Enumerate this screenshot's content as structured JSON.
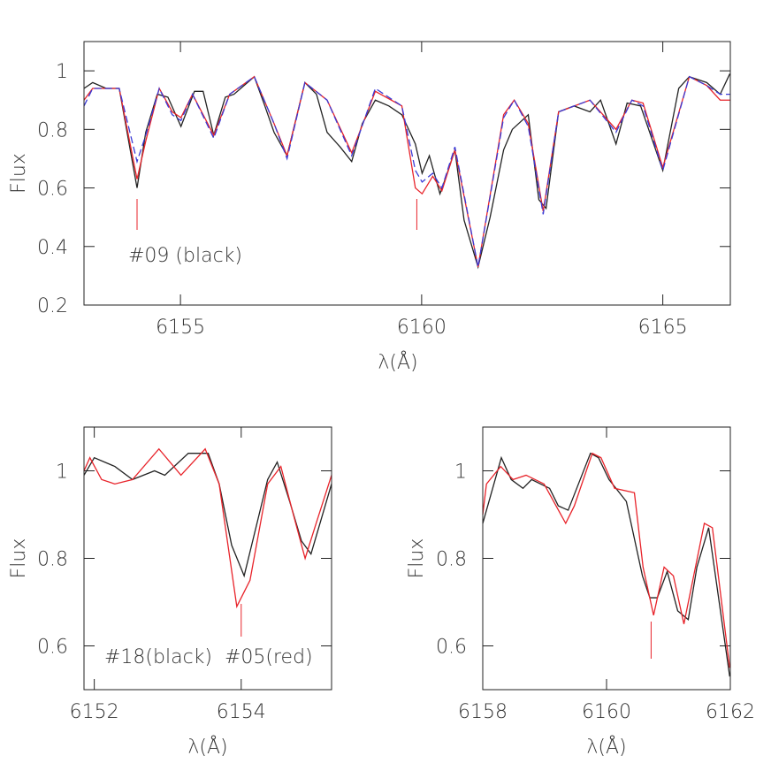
{
  "chart_data": [
    {
      "type": "line",
      "x_label": "λ(Å)",
      "y_label": "Flux",
      "annotation": "#09 (black)",
      "xlim": [
        6153.0,
        6166.4
      ],
      "ylim": [
        0.2,
        1.1
      ],
      "xticks": [
        6155,
        6160,
        6165
      ],
      "yticks": [
        0.2,
        0.4,
        0.6,
        0.8,
        1
      ],
      "marker_x": [
        6154.1,
        6159.9
      ],
      "marker_color": "#e8232a",
      "series": [
        {
          "color": "#222222",
          "dash": false,
          "x": [
            6153.0,
            6153.18,
            6153.46,
            6153.73,
            6154.1,
            6154.28,
            6154.52,
            6154.74,
            6155.01,
            6155.29,
            6155.47,
            6155.69,
            6155.93,
            6156.11,
            6156.53,
            6156.75,
            6156.94,
            6157.21,
            6157.58,
            6157.82,
            6158.04,
            6158.31,
            6158.55,
            6158.77,
            6159.04,
            6159.32,
            6159.59,
            6159.87,
            6160.01,
            6160.16,
            6160.38,
            6160.51,
            6160.69,
            6160.88,
            6161.17,
            6161.42,
            6161.7,
            6161.88,
            6162.21,
            6162.43,
            6162.58,
            6162.84,
            6163.16,
            6163.49,
            6163.71,
            6164.03,
            6164.26,
            6164.54,
            6165.0,
            6165.33,
            6165.55,
            6165.91,
            6166.19,
            6166.39
          ],
          "values": [
            0.94,
            0.96,
            0.94,
            0.94,
            0.6,
            0.79,
            0.92,
            0.91,
            0.81,
            0.93,
            0.93,
            0.78,
            0.91,
            0.92,
            0.98,
            0.88,
            0.79,
            0.71,
            0.96,
            0.92,
            0.79,
            0.74,
            0.69,
            0.82,
            0.9,
            0.88,
            0.85,
            0.75,
            0.65,
            0.71,
            0.58,
            0.64,
            0.73,
            0.49,
            0.33,
            0.5,
            0.73,
            0.8,
            0.85,
            0.56,
            0.53,
            0.86,
            0.88,
            0.86,
            0.9,
            0.75,
            0.89,
            0.88,
            0.66,
            0.94,
            0.98,
            0.96,
            0.92,
            0.99
          ]
        },
        {
          "color": "#e8232a",
          "dash": false,
          "x": [
            6153.0,
            6153.18,
            6153.73,
            6154.1,
            6154.28,
            6154.56,
            6154.83,
            6155.01,
            6155.25,
            6155.69,
            6156.02,
            6156.53,
            6156.94,
            6157.21,
            6157.58,
            6158.04,
            6158.55,
            6159.04,
            6159.59,
            6159.87,
            6160.01,
            6160.23,
            6160.42,
            6160.69,
            6161.17,
            6161.7,
            6161.92,
            6162.21,
            6162.52,
            6162.84,
            6163.49,
            6164.03,
            6164.36,
            6164.59,
            6165.0,
            6165.55,
            6165.91,
            6166.19,
            6166.39
          ],
          "values": [
            0.9,
            0.94,
            0.94,
            0.63,
            0.76,
            0.94,
            0.86,
            0.84,
            0.92,
            0.78,
            0.92,
            0.98,
            0.82,
            0.71,
            0.96,
            0.9,
            0.72,
            0.93,
            0.88,
            0.6,
            0.58,
            0.64,
            0.59,
            0.73,
            0.33,
            0.85,
            0.9,
            0.82,
            0.52,
            0.86,
            0.9,
            0.8,
            0.9,
            0.89,
            0.67,
            0.98,
            0.95,
            0.9,
            0.9
          ]
        },
        {
          "color": "#3b3bd6",
          "dash": true,
          "x": [
            6153.0,
            6153.18,
            6153.73,
            6154.1,
            6154.28,
            6154.56,
            6154.83,
            6155.01,
            6155.25,
            6155.69,
            6156.02,
            6156.53,
            6156.94,
            6157.21,
            6157.58,
            6158.04,
            6158.55,
            6159.04,
            6159.59,
            6159.87,
            6160.01,
            6160.23,
            6160.42,
            6160.69,
            6161.17,
            6161.7,
            6161.92,
            6162.21,
            6162.52,
            6162.84,
            6163.49,
            6164.03,
            6164.36,
            6164.59,
            6165.0,
            6165.55,
            6165.91,
            6166.19,
            6166.39
          ],
          "values": [
            0.88,
            0.94,
            0.94,
            0.69,
            0.78,
            0.94,
            0.85,
            0.83,
            0.92,
            0.77,
            0.92,
            0.98,
            0.82,
            0.7,
            0.96,
            0.9,
            0.71,
            0.94,
            0.88,
            0.66,
            0.62,
            0.65,
            0.6,
            0.74,
            0.33,
            0.84,
            0.9,
            0.81,
            0.51,
            0.86,
            0.9,
            0.79,
            0.9,
            0.88,
            0.66,
            0.98,
            0.95,
            0.92,
            0.92
          ]
        }
      ]
    },
    {
      "type": "line",
      "x_label": "λ(Å)",
      "y_label": "Flux",
      "annotation": "#18(black)  #05(red)",
      "xlim": [
        6151.86,
        6155.23
      ],
      "ylim": [
        0.5,
        1.1
      ],
      "xticks": [
        6152,
        6154
      ],
      "yticks": [
        0.6,
        0.8,
        1
      ],
      "marker_x": [
        6154.0
      ],
      "marker_color": "#e8232a",
      "series": [
        {
          "color": "#222222",
          "dash": false,
          "x": [
            6151.86,
            6152.0,
            6152.28,
            6152.52,
            6152.82,
            6152.96,
            6153.28,
            6153.55,
            6153.7,
            6153.87,
            6154.04,
            6154.36,
            6154.49,
            6154.66,
            6154.82,
            6154.95,
            6155.23
          ],
          "values": [
            0.99,
            1.03,
            1.01,
            0.98,
            1.0,
            0.99,
            1.04,
            1.04,
            0.97,
            0.83,
            0.76,
            0.98,
            1.02,
            0.93,
            0.84,
            0.81,
            0.97
          ]
        },
        {
          "color": "#e8232a",
          "dash": false,
          "x": [
            6151.86,
            6151.94,
            6152.1,
            6152.28,
            6152.52,
            6152.88,
            6153.18,
            6153.51,
            6153.7,
            6153.94,
            6154.12,
            6154.36,
            6154.54,
            6154.71,
            6154.87,
            6155.02,
            6155.23
          ],
          "values": [
            1.0,
            1.03,
            0.98,
            0.97,
            0.98,
            1.05,
            0.99,
            1.05,
            0.97,
            0.69,
            0.75,
            0.97,
            1.01,
            0.9,
            0.8,
            0.88,
            0.99
          ]
        }
      ]
    },
    {
      "type": "line",
      "x_label": "λ(Å)",
      "y_label": "Flux",
      "xlim": [
        6158,
        6162
      ],
      "ylim": [
        0.5,
        1.1
      ],
      "xticks": [
        6158,
        6160,
        6162
      ],
      "yticks": [
        0.6,
        0.8,
        1
      ],
      "marker_x": [
        6160.72
      ],
      "marker_color": "#e8232a",
      "series": [
        {
          "color": "#222222",
          "dash": false,
          "x": [
            6158.0,
            6158.3,
            6158.46,
            6158.65,
            6158.79,
            6159.08,
            6159.22,
            6159.38,
            6159.74,
            6159.87,
            6160.04,
            6160.32,
            6160.58,
            6160.7,
            6160.82,
            6160.98,
            6161.15,
            6161.32,
            6161.46,
            6161.65,
            6161.99
          ],
          "values": [
            0.88,
            1.03,
            0.98,
            0.96,
            0.98,
            0.96,
            0.92,
            0.91,
            1.04,
            1.03,
            0.98,
            0.93,
            0.76,
            0.71,
            0.71,
            0.77,
            0.68,
            0.66,
            0.78,
            0.87,
            0.53
          ]
        },
        {
          "color": "#e8232a",
          "dash": false,
          "x": [
            6158.0,
            6158.06,
            6158.29,
            6158.49,
            6158.7,
            6158.99,
            6159.34,
            6159.48,
            6159.77,
            6159.91,
            6160.13,
            6160.45,
            6160.59,
            6160.76,
            6160.93,
            6161.08,
            6161.25,
            6161.58,
            6161.71,
            6161.99
          ],
          "values": [
            0.9,
            0.97,
            1.01,
            0.98,
            0.99,
            0.97,
            0.88,
            0.92,
            1.04,
            1.03,
            0.96,
            0.95,
            0.78,
            0.67,
            0.78,
            0.76,
            0.65,
            0.88,
            0.87,
            0.55
          ]
        }
      ]
    }
  ]
}
